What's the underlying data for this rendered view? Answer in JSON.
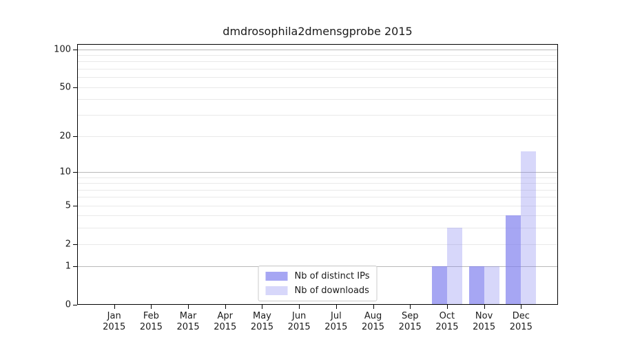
{
  "chart_data": {
    "type": "bar",
    "title": "dmdrosophila2dmensgprobe 2015",
    "categories": [
      "Jan",
      "Feb",
      "Mar",
      "Apr",
      "May",
      "Jun",
      "Jul",
      "Aug",
      "Sep",
      "Oct",
      "Nov",
      "Dec"
    ],
    "year_label": "2015",
    "series": [
      {
        "key": "distinct-ips",
        "name": "Nb of distinct IPs",
        "fill": "rgba(124,124,238,0.68)",
        "values": [
          0,
          0,
          0,
          0,
          0,
          0,
          0,
          0,
          0,
          1,
          1,
          4
        ]
      },
      {
        "key": "downloads",
        "name": "Nb of downloads",
        "fill": "rgba(124,124,238,0.30)",
        "values": [
          0,
          0,
          0,
          0,
          0,
          0,
          0,
          0,
          0,
          3,
          1,
          15
        ]
      }
    ],
    "yticks": [
      0,
      1,
      2,
      5,
      10,
      20,
      50,
      100
    ],
    "ylim": [
      0,
      110
    ],
    "scale": "log1p",
    "grid": {
      "major": [
        1,
        10,
        100
      ],
      "minor": [
        2,
        3,
        4,
        5,
        6,
        7,
        8,
        9,
        20,
        30,
        40,
        50,
        60,
        70,
        80,
        90
      ]
    },
    "legend_position": "lower center",
    "colors": {
      "bar_base": "#7c7cee",
      "major_grid": "#b8b8b8",
      "minor_grid": "#e9e9e9",
      "axis": "#000000",
      "text": "#1a1a1a",
      "legend_border": "#cccccc"
    }
  }
}
